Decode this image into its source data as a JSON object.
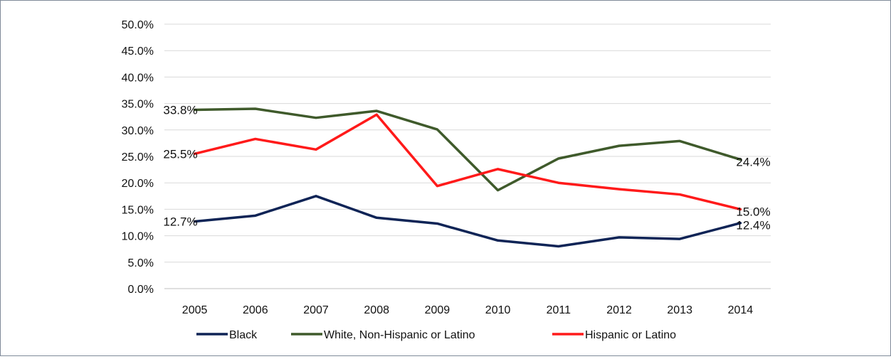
{
  "chart_data": {
    "type": "line",
    "title": "",
    "xlabel": "",
    "ylabel": "",
    "categories": [
      "2005",
      "2006",
      "2007",
      "2008",
      "2009",
      "2010",
      "2011",
      "2012",
      "2013",
      "2014"
    ],
    "ylim": [
      0,
      50
    ],
    "yticks": [
      "0.0%",
      "5.0%",
      "10.0%",
      "15.0%",
      "20.0%",
      "25.0%",
      "30.0%",
      "35.0%",
      "40.0%",
      "45.0%",
      "50.0%"
    ],
    "grid": true,
    "legend_position": "bottom",
    "series": [
      {
        "name": "Black",
        "color": "#0f2456",
        "values": [
          12.7,
          13.8,
          17.5,
          13.4,
          12.3,
          9.1,
          8.0,
          9.7,
          9.4,
          12.4
        ],
        "labels": {
          "first": "12.7%",
          "last": "12.4%"
        }
      },
      {
        "name": "White, Non-Hispanic or Latino",
        "color": "#3f5a2b",
        "values": [
          33.8,
          34.0,
          32.3,
          33.6,
          30.1,
          18.6,
          24.6,
          27.0,
          27.9,
          24.4
        ],
        "labels": {
          "first": "33.8%",
          "last": "24.4%"
        }
      },
      {
        "name": "Hispanic or Latino",
        "color": "#ff1a1a",
        "values": [
          25.5,
          28.3,
          26.3,
          32.9,
          19.4,
          22.6,
          20.0,
          18.8,
          17.8,
          15.0
        ],
        "labels": {
          "first": "25.5%",
          "last": "15.0%"
        }
      }
    ]
  }
}
